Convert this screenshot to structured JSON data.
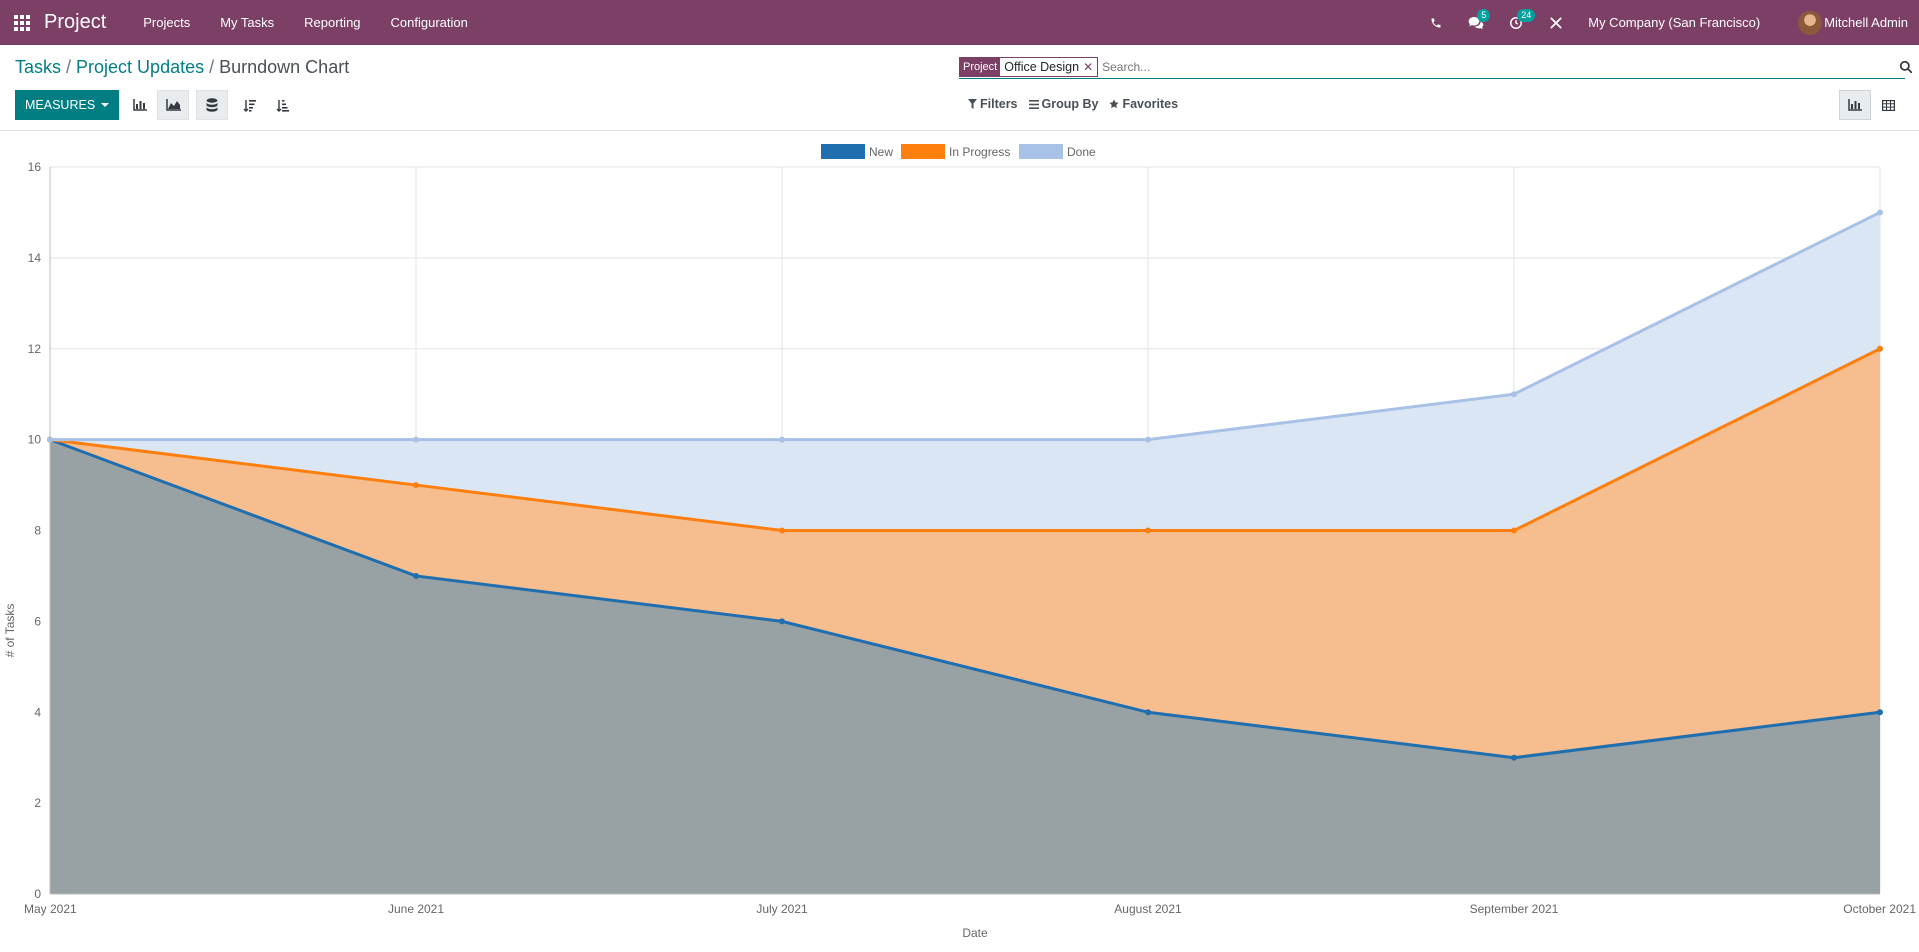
{
  "navbar": {
    "brand": "Project",
    "menu": [
      "Projects",
      "My Tasks",
      "Reporting",
      "Configuration"
    ],
    "messages_count": "5",
    "activities_count": "24",
    "company": "My Company (San Francisco)",
    "user": "Mitchell Admin"
  },
  "breadcrumb": {
    "items": [
      "Tasks",
      "Project Updates"
    ],
    "current": "Burndown Chart"
  },
  "search": {
    "facet_label": "Project",
    "facet_value": "Office Design",
    "placeholder": "Search..."
  },
  "toolbar": {
    "measures_label": "MEASURES"
  },
  "filters": {
    "filters_label": "Filters",
    "groupby_label": "Group By",
    "favorites_label": "Favorites"
  },
  "colors": {
    "new": "#1f6eb0",
    "in_progress": "#ff7f0e",
    "done": "#a8c1e6"
  },
  "chart_data": {
    "type": "area",
    "stacked": true,
    "x": [
      "May 2021",
      "June 2021",
      "July 2021",
      "August 2021",
      "September 2021",
      "October 2021"
    ],
    "series": [
      {
        "name": "New",
        "values": [
          10,
          7,
          6,
          4,
          3,
          4
        ]
      },
      {
        "name": "In Progress",
        "values": [
          0,
          2,
          2,
          4,
          5,
          8
        ]
      },
      {
        "name": "Done",
        "values": [
          0,
          1,
          2,
          2,
          3,
          3
        ]
      }
    ],
    "xlabel": "Date",
    "ylabel": "# of Tasks",
    "ylim": [
      0,
      16
    ],
    "yticks": [
      0,
      2,
      4,
      6,
      8,
      10,
      12,
      14,
      16
    ],
    "grid": true,
    "legend": "top-center"
  }
}
